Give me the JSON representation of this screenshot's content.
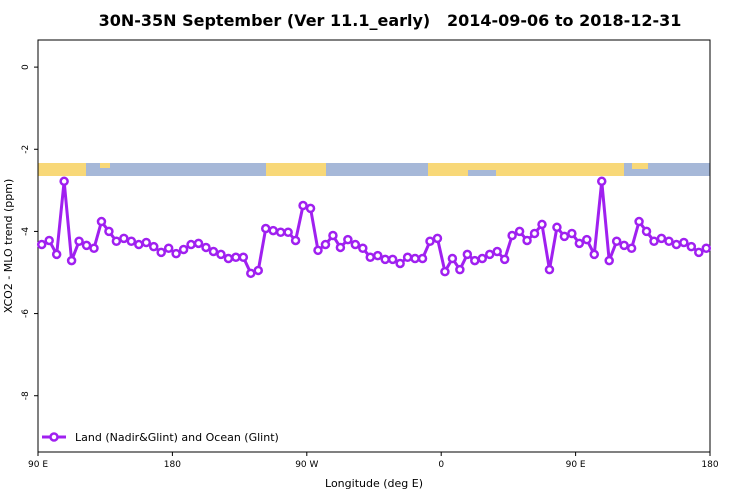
{
  "chart_data": {
    "type": "line",
    "title": "30N-35N September (Ver 11.1_early)   2014-09-06 to 2018-12-31",
    "xlabel": "Longitude (deg E)",
    "ylabel": "XCO2 - MLO trend (ppm)",
    "xlim": [
      90,
      540
    ],
    "xticks": [
      {
        "value": 90,
        "label": "90 E"
      },
      180,
      {
        "value": 270,
        "label": "90 W"
      },
      {
        "value": 360,
        "label": "0"
      },
      {
        "value": 450,
        "label": "90 E"
      },
      {
        "value": 540,
        "label": "180"
      }
    ],
    "ylim": [
      -9.37,
      0.66
    ],
    "yticks": [
      0,
      -2,
      -4,
      -6,
      -8
    ],
    "legend": "bottom-left",
    "x": [
      92.5,
      97.5,
      102.5,
      107.5,
      112.5,
      117.5,
      122.5,
      127.5,
      132.5,
      137.5,
      142.5,
      147.5,
      152.5,
      157.5,
      162.5,
      167.5,
      172.5,
      177.5,
      182.5,
      187.5,
      192.5,
      197.5,
      202.5,
      207.5,
      212.5,
      217.5,
      222.5,
      227.5,
      232.5,
      237.5,
      242.5,
      247.5,
      252.5,
      257.5,
      262.5,
      267.5,
      272.5,
      277.5,
      282.5,
      287.5,
      292.5,
      297.5,
      302.5,
      307.5,
      312.5,
      317.5,
      322.5,
      327.5,
      332.5,
      337.5,
      342.5,
      347.5,
      352.5,
      357.5,
      362.5,
      367.5,
      372.5,
      377.5,
      382.5,
      387.5,
      392.5,
      397.5,
      402.5,
      407.5,
      412.5,
      417.5,
      422.5,
      427.5,
      432.5,
      437.5,
      442.5,
      447.5,
      452.5,
      457.5,
      462.5,
      467.5,
      472.5,
      477.5,
      482.5,
      487.5,
      492.5,
      497.5,
      502.5,
      507.5,
      512.5,
      517.5,
      522.5,
      527.5,
      532.5,
      537.5
    ],
    "series": [
      {
        "name": "Land (Nadir&Glint) and Ocean (Glint)",
        "color": "#a020f0",
        "values": [
          -4.32,
          -4.22,
          -4.56,
          -2.78,
          -4.71,
          -4.24,
          -4.34,
          -4.41,
          -3.76,
          -4.0,
          -4.24,
          -4.17,
          -4.24,
          -4.32,
          -4.27,
          -4.37,
          -4.51,
          -4.41,
          -4.54,
          -4.44,
          -4.32,
          -4.29,
          -4.39,
          -4.49,
          -4.56,
          -4.66,
          -4.63,
          -4.63,
          -5.02,
          -4.95,
          -3.93,
          -3.98,
          -4.02,
          -4.02,
          -4.22,
          -3.37,
          -3.44,
          -4.46,
          -4.32,
          -4.1,
          -4.39,
          -4.2,
          -4.32,
          -4.41,
          -4.63,
          -4.59,
          -4.68,
          -4.68,
          -4.78,
          -4.63,
          -4.66,
          -4.66,
          -4.24,
          -4.17,
          -4.98,
          -4.66,
          -4.93,
          -4.56,
          -4.71,
          -4.66,
          -4.56,
          -4.49,
          -4.68,
          -4.1,
          -4.0,
          -4.22,
          -4.05,
          -3.83,
          -4.93,
          -3.9,
          -4.12,
          -4.05,
          -4.29,
          -4.2,
          -4.56,
          -2.78,
          -4.71,
          -4.24,
          -4.34,
          -4.41,
          -3.76,
          -4.0,
          -4.24,
          -4.17,
          -4.24,
          -4.32,
          -4.27,
          -4.37,
          -4.51,
          -4.41
        ]
      }
    ]
  }
}
